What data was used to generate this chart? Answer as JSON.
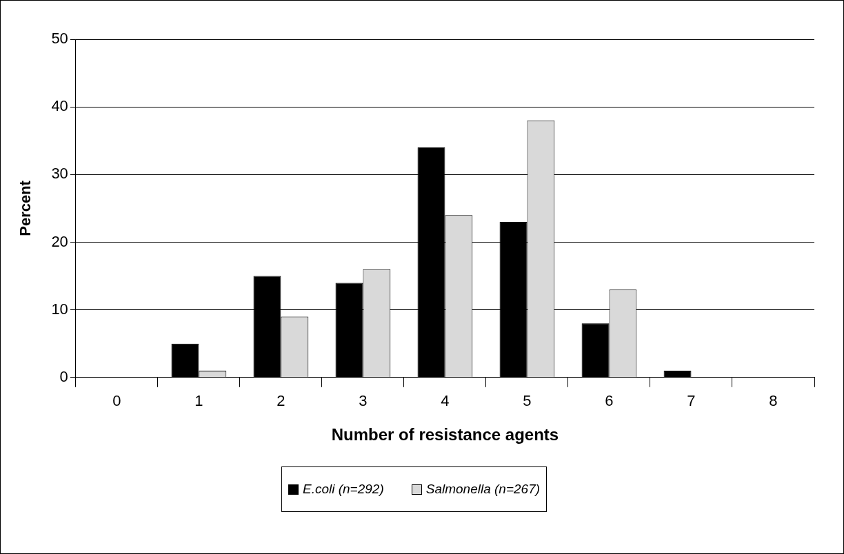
{
  "chart_data": {
    "type": "bar",
    "xlabel": "Number of resistance agents",
    "ylabel": "Percent",
    "categories": [
      "0",
      "1",
      "2",
      "3",
      "4",
      "5",
      "6",
      "7",
      "8"
    ],
    "series": [
      {
        "name": "E.coli (n=292)",
        "color": "#000000",
        "values": [
          0,
          5,
          15,
          14,
          34,
          23,
          8,
          1,
          0
        ]
      },
      {
        "name": "Salmonella (n=267)",
        "color": "#d9d9d9",
        "values": [
          0,
          1,
          9,
          16,
          24,
          38,
          13,
          0,
          0
        ]
      }
    ],
    "ylim": [
      0,
      50
    ],
    "yticks": [
      0,
      10,
      20,
      30,
      40,
      50
    ],
    "grid": "y",
    "legend": "bottom"
  }
}
